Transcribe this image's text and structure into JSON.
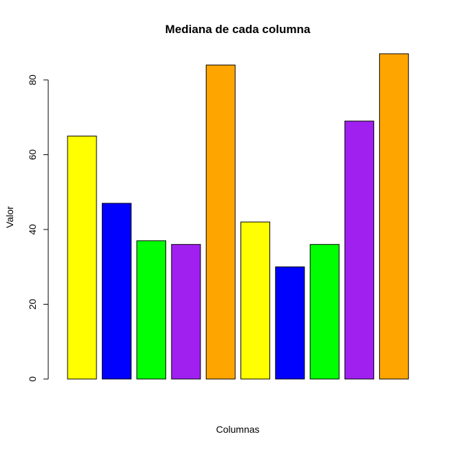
{
  "chart_data": {
    "type": "bar",
    "title": "Mediana de cada columna",
    "xlabel": "Columnas",
    "ylabel": "Valor",
    "values": [
      65,
      47,
      37,
      36,
      84,
      42,
      30,
      36,
      69,
      87
    ],
    "colors": [
      "#FFFF00",
      "#0000FF",
      "#00FF00",
      "#A020F0",
      "#FFA500",
      "#FFFF00",
      "#0000FF",
      "#00FF00",
      "#A020F0",
      "#FFA500"
    ],
    "ylim": [
      0,
      87
    ],
    "yticks": [
      0,
      20,
      40,
      60,
      80
    ],
    "grid": false,
    "legend": "none"
  }
}
